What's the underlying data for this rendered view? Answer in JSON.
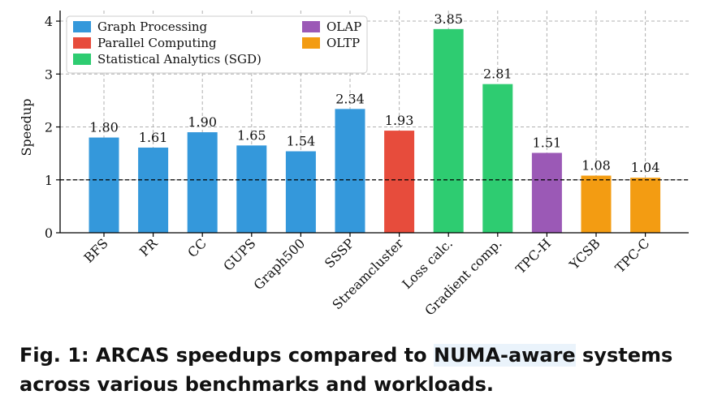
{
  "chart_data": {
    "type": "bar",
    "ylabel": "Speedup",
    "ylim": [
      0,
      4.2
    ],
    "yticks": [
      0,
      1,
      2,
      3,
      4
    ],
    "grid": true,
    "baseline": 1,
    "legend_position": "top-left",
    "categories": [
      "BFS",
      "PR",
      "CC",
      "GUPS",
      "Graph500",
      "SSSP",
      "Streamcluster",
      "Loss calc.",
      "Gradient comp.",
      "TPC-H",
      "YCSB",
      "TPC-C"
    ],
    "values": [
      1.8,
      1.61,
      1.9,
      1.65,
      1.54,
      2.34,
      1.93,
      3.85,
      2.81,
      1.51,
      1.08,
      1.04
    ],
    "value_labels": [
      "1.80",
      "1.61",
      "1.90",
      "1.65",
      "1.54",
      "2.34",
      "1.93",
      "3.85",
      "2.81",
      "1.51",
      "1.08",
      "1.04"
    ],
    "groups": [
      "Graph Processing",
      "Graph Processing",
      "Graph Processing",
      "Graph Processing",
      "Graph Processing",
      "Graph Processing",
      "Parallel Computing",
      "Statistical Analytics (SGD)",
      "Statistical Analytics (SGD)",
      "OLAP",
      "OLTP",
      "OLTP"
    ],
    "legend": [
      {
        "name": "Graph Processing",
        "color": "#3498db"
      },
      {
        "name": "Parallel Computing",
        "color": "#e74c3c"
      },
      {
        "name": "Statistical Analytics (SGD)",
        "color": "#2ecc71"
      },
      {
        "name": "OLAP",
        "color": "#9b59b6"
      },
      {
        "name": "OLTP",
        "color": "#f39c12"
      }
    ]
  },
  "caption": {
    "prefix": "Fig. 1: ARCAS speedups compared to ",
    "highlight": "NUMA-aware",
    "suffix": " systems across various benchmarks and workloads."
  }
}
